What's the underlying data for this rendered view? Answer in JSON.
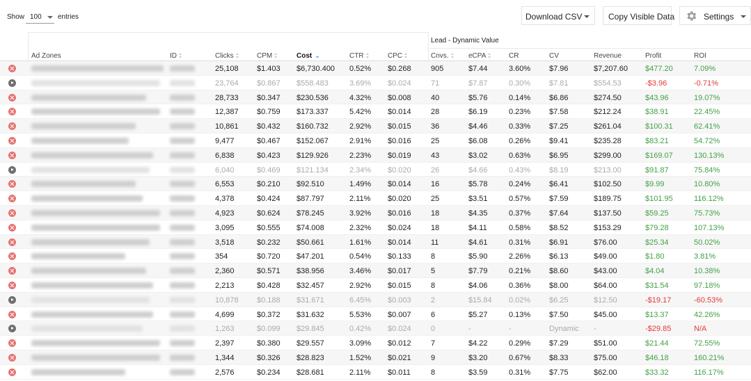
{
  "toolbar": {
    "show_label": "Show",
    "entries_value": "100",
    "entries_label": "entries",
    "download_csv": "Download CSV",
    "copy_visible": "Copy Visible Data",
    "settings": "Settings"
  },
  "group_header": "Lead - Dynamic Value",
  "columns": {
    "ad_zones": "Ad Zones",
    "id": "ID",
    "clicks": "Clicks",
    "cpm": "CPM",
    "cost": "Cost",
    "ctr": "CTR",
    "cpc": "CPC",
    "cnvs": "Cnvs.",
    "ecpa": "eCPA",
    "cr": "CR",
    "cv": "CV",
    "revenue": "Revenue",
    "profit": "Profit",
    "roi": "ROI"
  },
  "rows": [
    {
      "status": "active",
      "clicks": "25,108",
      "cpm": "$1.403",
      "cost": "$6,730.400",
      "ctr": "0.52%",
      "cpc": "$0.268",
      "cnvs": "905",
      "ecpa": "$7.44",
      "cr": "3.60%",
      "cv": "$7.96",
      "revenue": "$7,207.60",
      "profit": "$477.20",
      "roi": "7.09%",
      "profit_sign": "pos"
    },
    {
      "status": "paused",
      "clicks": "23,764",
      "cpm": "$0.867",
      "cost": "$558.483",
      "ctr": "3.69%",
      "cpc": "$0.024",
      "cnvs": "71",
      "ecpa": "$7.87",
      "cr": "0.30%",
      "cv": "$7.81",
      "revenue": "$554.53",
      "profit": "-$3.96",
      "roi": "-0.71%",
      "profit_sign": "neg"
    },
    {
      "status": "active",
      "clicks": "28,733",
      "cpm": "$0.347",
      "cost": "$230.536",
      "ctr": "4.32%",
      "cpc": "$0.008",
      "cnvs": "40",
      "ecpa": "$5.76",
      "cr": "0.14%",
      "cv": "$6.86",
      "revenue": "$274.50",
      "profit": "$43.96",
      "roi": "19.07%",
      "profit_sign": "pos"
    },
    {
      "status": "active",
      "clicks": "12,387",
      "cpm": "$0.759",
      "cost": "$173.337",
      "ctr": "5.42%",
      "cpc": "$0.014",
      "cnvs": "28",
      "ecpa": "$6.19",
      "cr": "0.23%",
      "cv": "$7.58",
      "revenue": "$212.24",
      "profit": "$38.91",
      "roi": "22.45%",
      "profit_sign": "pos"
    },
    {
      "status": "active",
      "clicks": "10,861",
      "cpm": "$0.432",
      "cost": "$160.732",
      "ctr": "2.92%",
      "cpc": "$0.015",
      "cnvs": "36",
      "ecpa": "$4.46",
      "cr": "0.33%",
      "cv": "$7.25",
      "revenue": "$261.04",
      "profit": "$100.31",
      "roi": "62.41%",
      "profit_sign": "pos"
    },
    {
      "status": "active",
      "clicks": "9,477",
      "cpm": "$0.467",
      "cost": "$152.067",
      "ctr": "2.91%",
      "cpc": "$0.016",
      "cnvs": "25",
      "ecpa": "$6.08",
      "cr": "0.26%",
      "cv": "$9.41",
      "revenue": "$235.28",
      "profit": "$83.21",
      "roi": "54.72%",
      "profit_sign": "pos"
    },
    {
      "status": "active",
      "clicks": "6,838",
      "cpm": "$0.423",
      "cost": "$129.926",
      "ctr": "2.23%",
      "cpc": "$0.019",
      "cnvs": "43",
      "ecpa": "$3.02",
      "cr": "0.63%",
      "cv": "$6.95",
      "revenue": "$299.00",
      "profit": "$169.07",
      "roi": "130.13%",
      "profit_sign": "pos"
    },
    {
      "status": "paused",
      "clicks": "6,040",
      "cpm": "$0.469",
      "cost": "$121.134",
      "ctr": "2.34%",
      "cpc": "$0.020",
      "cnvs": "26",
      "ecpa": "$4.66",
      "cr": "0.43%",
      "cv": "$8.19",
      "revenue": "$213.00",
      "profit": "$91.87",
      "roi": "75.84%",
      "profit_sign": "pos"
    },
    {
      "status": "active",
      "clicks": "6,553",
      "cpm": "$0.210",
      "cost": "$92.510",
      "ctr": "1.49%",
      "cpc": "$0.014",
      "cnvs": "16",
      "ecpa": "$5.78",
      "cr": "0.24%",
      "cv": "$6.41",
      "revenue": "$102.50",
      "profit": "$9.99",
      "roi": "10.80%",
      "profit_sign": "pos"
    },
    {
      "status": "active",
      "clicks": "4,378",
      "cpm": "$0.424",
      "cost": "$87.797",
      "ctr": "2.11%",
      "cpc": "$0.020",
      "cnvs": "25",
      "ecpa": "$3.51",
      "cr": "0.57%",
      "cv": "$7.59",
      "revenue": "$189.75",
      "profit": "$101.95",
      "roi": "116.12%",
      "profit_sign": "pos"
    },
    {
      "status": "active",
      "clicks": "4,923",
      "cpm": "$0.624",
      "cost": "$78.245",
      "ctr": "3.92%",
      "cpc": "$0.016",
      "cnvs": "18",
      "ecpa": "$4.35",
      "cr": "0.37%",
      "cv": "$7.64",
      "revenue": "$137.50",
      "profit": "$59.25",
      "roi": "75.73%",
      "profit_sign": "pos"
    },
    {
      "status": "active",
      "clicks": "3,095",
      "cpm": "$0.555",
      "cost": "$74.008",
      "ctr": "2.32%",
      "cpc": "$0.024",
      "cnvs": "18",
      "ecpa": "$4.11",
      "cr": "0.58%",
      "cv": "$8.52",
      "revenue": "$153.29",
      "profit": "$79.28",
      "roi": "107.13%",
      "profit_sign": "pos"
    },
    {
      "status": "active",
      "clicks": "3,518",
      "cpm": "$0.232",
      "cost": "$50.661",
      "ctr": "1.61%",
      "cpc": "$0.014",
      "cnvs": "11",
      "ecpa": "$4.61",
      "cr": "0.31%",
      "cv": "$6.91",
      "revenue": "$76.00",
      "profit": "$25.34",
      "roi": "50.02%",
      "profit_sign": "pos"
    },
    {
      "status": "active",
      "clicks": "354",
      "cpm": "$0.720",
      "cost": "$47.201",
      "ctr": "0.54%",
      "cpc": "$0.133",
      "cnvs": "8",
      "ecpa": "$5.90",
      "cr": "2.26%",
      "cv": "$6.13",
      "revenue": "$49.00",
      "profit": "$1.80",
      "roi": "3.81%",
      "profit_sign": "pos"
    },
    {
      "status": "active",
      "clicks": "2,360",
      "cpm": "$0.571",
      "cost": "$38.956",
      "ctr": "3.46%",
      "cpc": "$0.017",
      "cnvs": "5",
      "ecpa": "$7.79",
      "cr": "0.21%",
      "cv": "$8.60",
      "revenue": "$43.00",
      "profit": "$4.04",
      "roi": "10.38%",
      "profit_sign": "pos"
    },
    {
      "status": "active",
      "clicks": "2,213",
      "cpm": "$0.428",
      "cost": "$32.457",
      "ctr": "2.92%",
      "cpc": "$0.015",
      "cnvs": "8",
      "ecpa": "$4.06",
      "cr": "0.36%",
      "cv": "$8.00",
      "revenue": "$64.00",
      "profit": "$31.54",
      "roi": "97.18%",
      "profit_sign": "pos"
    },
    {
      "status": "paused",
      "clicks": "10,878",
      "cpm": "$0.188",
      "cost": "$31.671",
      "ctr": "6.45%",
      "cpc": "$0.003",
      "cnvs": "2",
      "ecpa": "$15.84",
      "cr": "0.02%",
      "cv": "$6.25",
      "revenue": "$12.50",
      "profit": "-$19.17",
      "roi": "-60.53%",
      "profit_sign": "neg"
    },
    {
      "status": "active",
      "clicks": "4,699",
      "cpm": "$0.372",
      "cost": "$31.632",
      "ctr": "5.53%",
      "cpc": "$0.007",
      "cnvs": "6",
      "ecpa": "$5.27",
      "cr": "0.13%",
      "cv": "$7.50",
      "revenue": "$45.00",
      "profit": "$13.37",
      "roi": "42.26%",
      "profit_sign": "pos"
    },
    {
      "status": "paused",
      "clicks": "1,263",
      "cpm": "$0.099",
      "cost": "$29.845",
      "ctr": "0.42%",
      "cpc": "$0.024",
      "cnvs": "0",
      "ecpa": "-",
      "cr": "-",
      "cv": "Dynamic",
      "revenue": "-",
      "profit": "-$29.85",
      "roi": "N/A",
      "profit_sign": "neg"
    },
    {
      "status": "active",
      "clicks": "2,397",
      "cpm": "$0.380",
      "cost": "$29.557",
      "ctr": "3.09%",
      "cpc": "$0.012",
      "cnvs": "7",
      "ecpa": "$4.22",
      "cr": "0.29%",
      "cv": "$7.29",
      "revenue": "$51.00",
      "profit": "$21.44",
      "roi": "72.55%",
      "profit_sign": "pos"
    },
    {
      "status": "active",
      "clicks": "1,344",
      "cpm": "$0.326",
      "cost": "$28.823",
      "ctr": "1.52%",
      "cpc": "$0.021",
      "cnvs": "9",
      "ecpa": "$3.20",
      "cr": "0.67%",
      "cv": "$8.33",
      "revenue": "$75.00",
      "profit": "$46.18",
      "roi": "160.21%",
      "profit_sign": "pos"
    },
    {
      "status": "active",
      "clicks": "2,576",
      "cpm": "$0.234",
      "cost": "$28.681",
      "ctr": "2.11%",
      "cpc": "$0.011",
      "cnvs": "8",
      "ecpa": "$3.59",
      "cr": "0.31%",
      "cv": "$7.75",
      "revenue": "$62.00",
      "profit": "$33.32",
      "roi": "116.17%",
      "profit_sign": "pos"
    }
  ]
}
